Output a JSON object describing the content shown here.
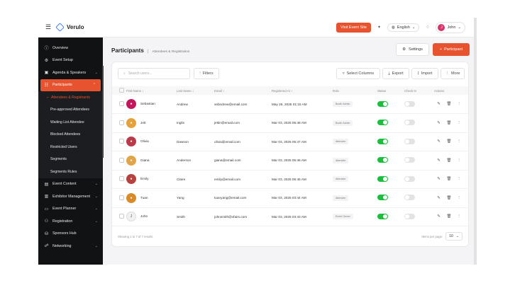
{
  "app": {
    "brand": "Verulo"
  },
  "topbar": {
    "visit_label": "Visit Event Site",
    "language": "English",
    "user_name": "John",
    "user_initial": "J",
    "accent": "#e8532f"
  },
  "sidebar": {
    "items": [
      {
        "label": "Overview",
        "icon": "info-icon",
        "glyph": "ⓘ"
      },
      {
        "label": "Event Setup",
        "icon": "gear-icon",
        "glyph": "⚙"
      },
      {
        "label": "Agenda & Speakers",
        "icon": "calendar-icon",
        "glyph": "▣"
      },
      {
        "label": "Participants",
        "icon": "users-icon",
        "glyph": "☷"
      }
    ],
    "participants_sub": [
      "Attendees & Registrants",
      "Pre-approved Attendees",
      "Waiting List Attendee",
      "Blocked Attendees",
      "Restricted Users",
      "Segments",
      "Segments Rules"
    ],
    "lower_items": [
      {
        "label": "Event Content",
        "icon": "grid-icon",
        "glyph": "▤"
      },
      {
        "label": "Exhibitor Management",
        "icon": "store-icon",
        "glyph": "▥"
      },
      {
        "label": "Event Planner",
        "icon": "folder-icon",
        "glyph": "▭"
      },
      {
        "label": "Registration",
        "icon": "user-plus-icon",
        "glyph": "⚇"
      },
      {
        "label": "Sponsors Hub",
        "icon": "handshake-icon",
        "glyph": "⛁"
      },
      {
        "label": "Networking",
        "icon": "network-icon",
        "glyph": "☍"
      }
    ]
  },
  "header": {
    "title": "Participants",
    "subtitle": "Attendees & Registration",
    "settings_label": "Settings",
    "add_label": "Participant"
  },
  "toolbar": {
    "search_placeholder": "Search users...",
    "filters_label": "Filters",
    "select_columns_label": "Select Columns",
    "export_label": "Export",
    "import_label": "Import",
    "more_label": "More"
  },
  "table": {
    "headers": [
      "First Name",
      "Last Name",
      "Email",
      "Registered At",
      "Role",
      "Status",
      "Check In",
      "Actions"
    ],
    "rows": [
      {
        "first": "Sebastian",
        "last": "Andrew",
        "email": "sebndrew@email.com",
        "registered": "May 26, 2025 01:15 AM",
        "role": "Booth Admin",
        "status": true,
        "checkin": false,
        "avatar_color": "#c2185b",
        "avatar_text": ""
      },
      {
        "first": "Jett",
        "last": "Inglis",
        "email": "jettin@email.com",
        "registered": "Mar 03, 2025 05:48 AM",
        "role": "Booth Admin",
        "status": true,
        "checkin": false,
        "avatar_color": "#e5a13a",
        "avatar_text": ""
      },
      {
        "first": "Olivia",
        "last": "Dawson",
        "email": "olivia@email.com",
        "registered": "Mar 03, 2025 05:47 AM",
        "role": "Attendee",
        "status": true,
        "checkin": false,
        "avatar_color": "#b83a4b",
        "avatar_text": ""
      },
      {
        "first": "Giana",
        "last": "Anderson",
        "email": "giana@email.com",
        "registered": "Mar 03, 2025 05:46 AM",
        "role": "Attendee",
        "status": true,
        "checkin": false,
        "avatar_color": "#e0a449",
        "avatar_text": ""
      },
      {
        "first": "Emily",
        "last": "Claire",
        "email": "emily@email.com",
        "registered": "Mar 03, 2025 05:45 AM",
        "role": "Attendee",
        "status": true,
        "checkin": false,
        "avatar_color": "#b7413e",
        "avatar_text": ""
      },
      {
        "first": "Tuan",
        "last": "Yang",
        "email": "tuanyang@email.com",
        "registered": "Mar 03, 2025 03:44 AM",
        "role": "Attendee",
        "status": true,
        "checkin": false,
        "avatar_color": "#d98a2b",
        "avatar_text": ""
      },
      {
        "first": "John",
        "last": "Smith",
        "email": "johnsmith@vfairs.com",
        "registered": "Mar 03, 2025 03:43 AM",
        "role": "Event Owner",
        "status": true,
        "checkin": false,
        "avatar_color": "",
        "avatar_text": "J"
      }
    ]
  },
  "footer": {
    "showing": "Showing 1 to 7 of 7 results",
    "per_page_label": "Items per page:",
    "per_page_value": "10"
  }
}
